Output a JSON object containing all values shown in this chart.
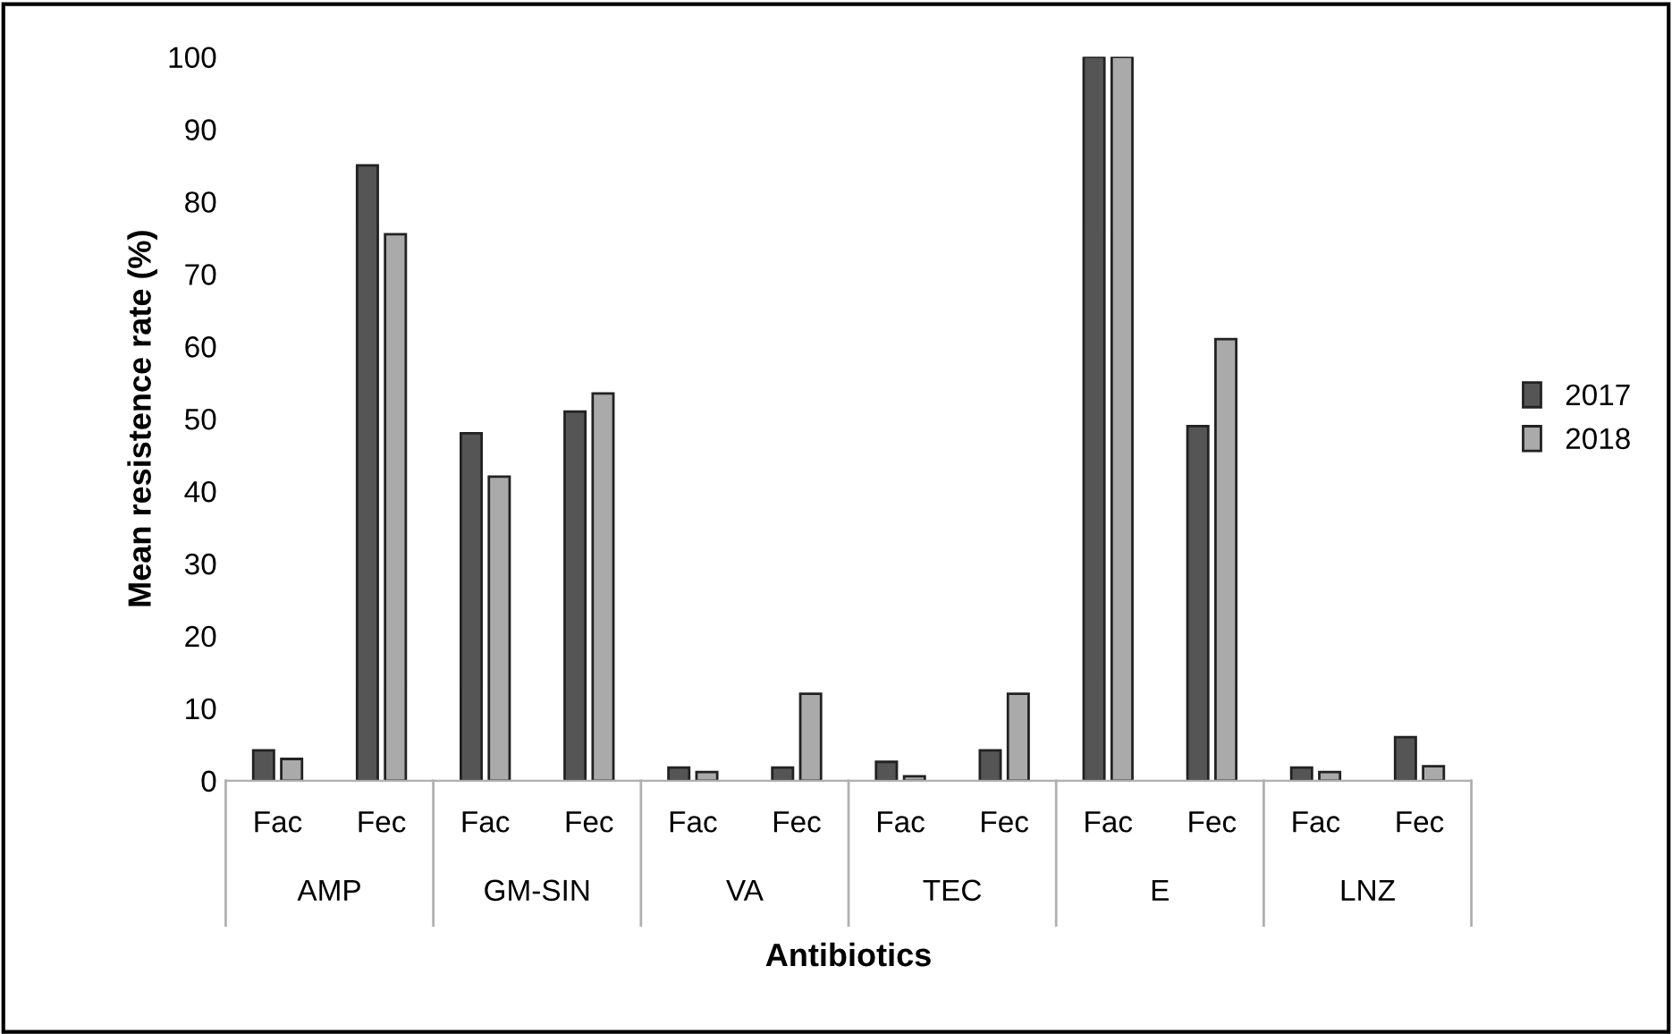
{
  "chart_data": {
    "type": "bar",
    "xlabel": "Antibiotics",
    "ylabel": "Mean resistence rate (%)",
    "categories": [
      "Fac",
      "Fec",
      "Fac",
      "Fec",
      "Fac",
      "Fec",
      "Fac",
      "Fec",
      "Fac",
      "Fec",
      "Fac",
      "Fec"
    ],
    "annotations": [
      "AMP",
      "GM-SIN",
      "VA",
      "TEC",
      "E",
      "LNZ"
    ],
    "series": [
      {
        "name": "2017",
        "color": "#555555",
        "values": [
          4.2,
          85,
          48,
          51,
          1.8,
          1.8,
          2.6,
          4.2,
          100,
          49,
          1.8,
          6
        ]
      },
      {
        "name": "2018",
        "color": "#aaaaaa",
        "values": [
          3,
          75.5,
          42,
          53.5,
          1.2,
          12,
          0.6,
          12,
          100,
          61,
          1.2,
          2
        ]
      }
    ],
    "ylim": [
      0,
      100
    ],
    "yticks": [
      0,
      10,
      20,
      30,
      40,
      50,
      60,
      70,
      80,
      90,
      100
    ],
    "grid": false,
    "legend": "right"
  }
}
